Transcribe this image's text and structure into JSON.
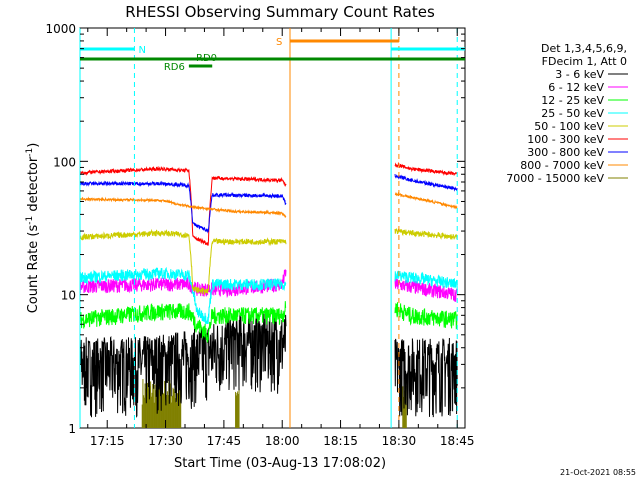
{
  "chart_data": {
    "type": "line",
    "title": "RHESSI Observing Summary Count Rates",
    "xlabel": "Start Time (03-Aug-13 17:08:02)",
    "ylabel_main": "Count Rate (s",
    "ylabel_sup1": "-1",
    "ylabel_mid": " detector",
    "ylabel_sup2": "-1",
    "ylabel_end": ")",
    "yscale": "log",
    "ylim": [
      1,
      1000
    ],
    "xlim": [
      "17:08",
      "18:47"
    ],
    "x_ticks": [
      "17:15",
      "17:30",
      "17:45",
      "18:00",
      "18:15",
      "18:30",
      "18:45"
    ],
    "y_ticks": [
      "1",
      "10",
      "100",
      "1000"
    ],
    "legend_header": [
      "Det 1,3,4,5,6,9,",
      "FDecim 1, Att 0"
    ],
    "series": [
      {
        "name": "3 - 6 keV",
        "color": "#000000",
        "segments": [
          {
            "x": [
              "17:08",
              "17:22",
              "17:38",
              "17:48",
              "18:01"
            ],
            "y": [
              3.0,
              3.0,
              3.5,
              4.5,
              4.5
            ],
            "noise": 0.6
          },
          {
            "x": [
              "18:29",
              "18:36",
              "18:45"
            ],
            "y": [
              3.0,
              3.0,
              3.0
            ],
            "noise": 0.6
          }
        ]
      },
      {
        "name": "6 - 12 keV",
        "color": "#ff00ff",
        "segments": [
          {
            "x": [
              "17:08",
              "17:28",
              "17:36",
              "17:38",
              "17:48",
              "18:00",
              "18:01"
            ],
            "y": [
              11.5,
              12,
              12,
              11,
              11,
              12,
              15
            ],
            "noise": 0.12
          },
          {
            "x": [
              "18:29",
              "18:33",
              "18:45"
            ],
            "y": [
              12,
              11.5,
              10
            ],
            "noise": 0.12
          }
        ]
      },
      {
        "name": "12 - 25 keV",
        "color": "#00ff00",
        "segments": [
          {
            "x": [
              "17:08",
              "17:28",
              "17:36",
              "17:38",
              "17:41",
              "17:42",
              "18:00",
              "18:01"
            ],
            "y": [
              6.5,
              7.5,
              7.5,
              6,
              5,
              7,
              7,
              8
            ],
            "noise": 0.15
          },
          {
            "x": [
              "18:29",
              "18:33",
              "18:45"
            ],
            "y": [
              8,
              7,
              6.5
            ],
            "noise": 0.15
          }
        ]
      },
      {
        "name": "25 - 50 keV",
        "color": "#00ffff",
        "segments": [
          {
            "x": [
              "17:08",
              "17:29",
              "17:36",
              "17:38",
              "17:41",
              "17:42",
              "18:01"
            ],
            "y": [
              13.5,
              14.5,
              14,
              7.5,
              6.5,
              12,
              12
            ],
            "noise": 0.1
          },
          {
            "x": [
              "18:29",
              "18:33",
              "18:45"
            ],
            "y": [
              14,
              13.5,
              12
            ],
            "noise": 0.1
          }
        ]
      },
      {
        "name": "50 - 100 keV",
        "color": "#cccc00",
        "segments": [
          {
            "x": [
              "17:08",
              "17:29",
              "17:36",
              "17:37",
              "17:41",
              "17:42",
              "18:01"
            ],
            "y": [
              27,
              29,
              28,
              11,
              10.5,
              25,
              25
            ],
            "noise": 0.05
          },
          {
            "x": [
              "18:29",
              "18:33",
              "18:45"
            ],
            "y": [
              30,
              29,
              27
            ],
            "noise": 0.05
          }
        ]
      },
      {
        "name": "100 - 300 keV",
        "color": "#ff0000",
        "segments": [
          {
            "x": [
              "17:08",
              "17:29",
              "17:36",
              "17:37",
              "17:41",
              "17:42",
              "18:00",
              "18:01"
            ],
            "y": [
              82,
              88,
              85,
              27,
              24,
              75,
              72,
              65
            ],
            "noise": 0.03
          },
          {
            "x": [
              "18:29",
              "18:33",
              "18:45"
            ],
            "y": [
              95,
              88,
              80
            ],
            "noise": 0.03
          }
        ]
      },
      {
        "name": "300 - 800 keV",
        "color": "#0000ff",
        "segments": [
          {
            "x": [
              "17:08",
              "17:29",
              "17:36",
              "17:37",
              "17:41",
              "17:42",
              "18:00",
              "18:01"
            ],
            "y": [
              68,
              68,
              66,
              34,
              30,
              56,
              55,
              47
            ],
            "noise": 0.03
          },
          {
            "x": [
              "18:29",
              "18:33",
              "18:45"
            ],
            "y": [
              78,
              72,
              62
            ],
            "noise": 0.03
          }
        ]
      },
      {
        "name": "800 - 7000 keV",
        "color": "#ff8800",
        "segments": [
          {
            "x": [
              "17:08",
              "17:29",
              "17:34",
              "17:38",
              "17:48",
              "18:00",
              "18:01"
            ],
            "y": [
              52,
              51,
              47,
              45,
              42,
              41,
              38
            ],
            "noise": 0.02
          },
          {
            "x": [
              "18:29",
              "18:33",
              "18:45"
            ],
            "y": [
              57,
              54,
              45
            ],
            "noise": 0.02
          }
        ]
      },
      {
        "name": "7000 - 15000 keV",
        "color": "#808000",
        "segments": []
      }
    ],
    "background_bursts": {
      "color": "#808000",
      "ranges": [
        [
          "17:24",
          "17:34"
        ],
        [
          "17:48",
          "17:49"
        ],
        [
          "18:31",
          "18:32"
        ]
      ]
    },
    "annotations": {
      "n_label": "N",
      "s_label": "S",
      "rd0_label": "RD0",
      "rd6_label": "RD6",
      "night_color": "#00ffff",
      "saa_color": "#ff8800",
      "decim_color": "#008800",
      "night_solid_lines": [
        "17:08",
        "18:28"
      ],
      "night_dashed_lines": [
        "17:22",
        "18:45"
      ],
      "saa_solid_lines": [
        "18:02"
      ],
      "saa_dashed_lines": [
        "18:30"
      ],
      "n_bars": [
        [
          "17:08",
          "17:22"
        ],
        [
          "18:28",
          "18:47"
        ]
      ],
      "s_bar": [
        "18:02",
        "18:30"
      ],
      "rd0_bar": [
        "17:08",
        "18:47"
      ],
      "rd6_bar": [
        "17:36",
        "17:42"
      ]
    },
    "grid": false,
    "legend_position": "right"
  },
  "timestamp": "21-Oct-2021 08:55"
}
